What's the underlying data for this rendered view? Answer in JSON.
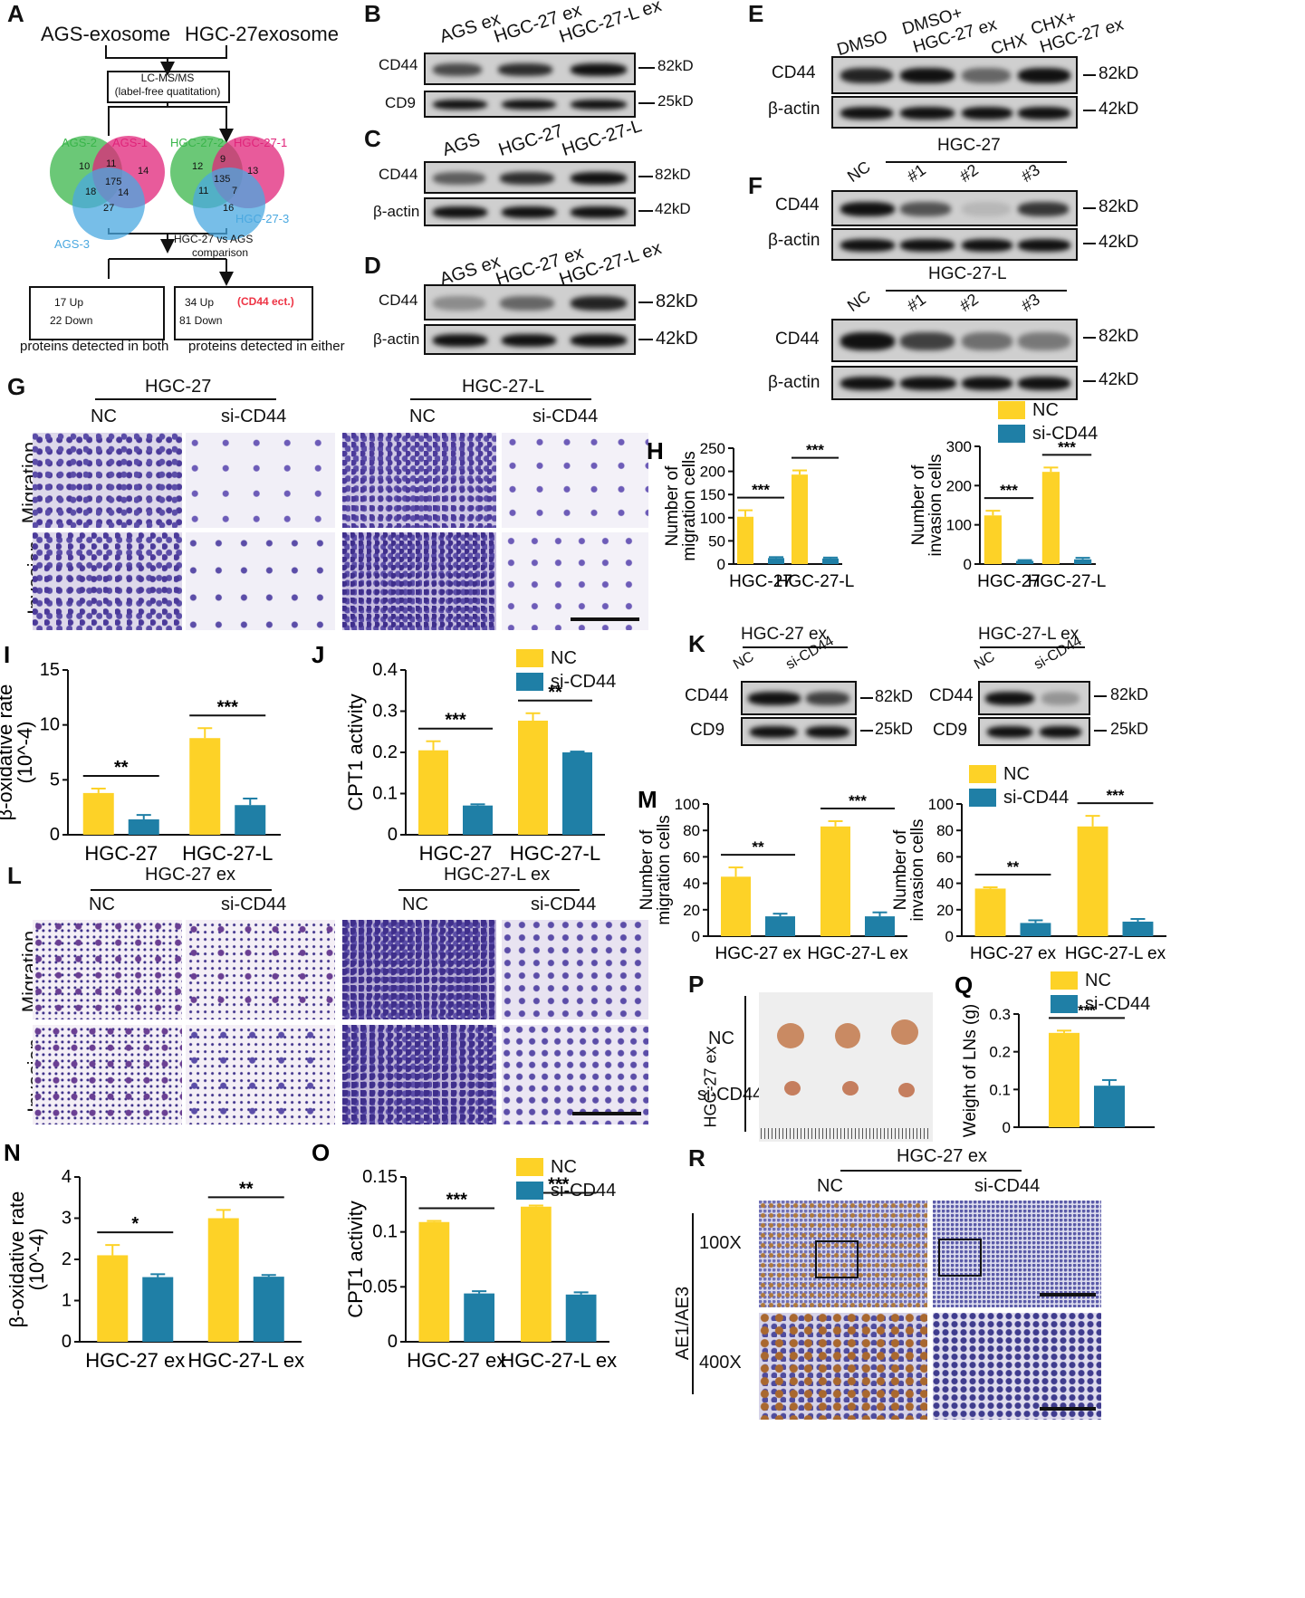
{
  "panels": {
    "A": {
      "label": "A",
      "top_left": "AGS-exosome",
      "top_right": "HGC-27exosome",
      "method_line1": "LC-MS/MS",
      "method_line2": "(label-free quatitation)",
      "ags_sets": [
        "AGS-2",
        "AGS-1",
        "AGS-3"
      ],
      "ags_counts": [
        "10",
        "11",
        "14",
        "175",
        "18",
        "14",
        "27"
      ],
      "hgc_sets": [
        "HGC-27-2",
        "HGC-27-1",
        "HGC-27-3"
      ],
      "hgc_counts": [
        "12",
        "9",
        "13",
        "135",
        "11",
        "7",
        "16"
      ],
      "comparison_line1": "HGC-27 vs AGS",
      "comparison_line2": "comparison",
      "left_up": "17 Up",
      "left_down": "22 Down",
      "right_up": "34 Up",
      "right_note": "(CD44 ect.)",
      "right_down": "81 Down",
      "caption_left": "proteins detected in both",
      "caption_right": "proteins detected in either"
    },
    "B": {
      "label": "B",
      "lanes": [
        "AGS ex",
        "HGC-27 ex",
        "HGC-27-L ex"
      ],
      "rows": [
        {
          "name": "CD44",
          "size": "82kD"
        },
        {
          "name": "CD9",
          "size": "25kD"
        }
      ]
    },
    "C": {
      "label": "C",
      "lanes": [
        "AGS",
        "HGC-27",
        "HGC-27-L"
      ],
      "rows": [
        {
          "name": "CD44",
          "size": "82kD"
        },
        {
          "name": "β-actin",
          "size": "42kD"
        }
      ]
    },
    "D": {
      "label": "D",
      "lanes": [
        "AGS ex",
        "HGC-27 ex",
        "HGC-27-L ex"
      ],
      "rows": [
        {
          "name": "CD44",
          "size": "82kD"
        },
        {
          "name": "β-actin",
          "size": "42kD"
        }
      ]
    },
    "E": {
      "label": "E",
      "lanes": [
        "DMSO",
        "DMSO+",
        "HGC-27 ex",
        "CHX",
        "CHX+",
        "HGC-27 ex"
      ],
      "rows": [
        {
          "name": "CD44",
          "size": "82kD"
        },
        {
          "name": "β-actin",
          "size": "42kD"
        }
      ]
    },
    "F": {
      "label": "F",
      "group1": "HGC-27",
      "group2": "HGC-27-L",
      "lanes": [
        "NC",
        "#1",
        "#2",
        "#3"
      ],
      "rows": [
        {
          "name": "CD44",
          "size": "82kD"
        },
        {
          "name": "β-actin",
          "size": "42kD"
        }
      ]
    },
    "G": {
      "label": "G",
      "group1": "HGC-27",
      "group2": "HGC-27-L",
      "cols": [
        "NC",
        "si-CD44",
        "NC",
        "si-CD44"
      ],
      "rows": [
        "Migration",
        "Invasion"
      ]
    },
    "K": {
      "label": "K",
      "group1": "HGC-27 ex",
      "group2": "HGC-27-L ex",
      "lanes": [
        "NC",
        "si-CD44"
      ],
      "rows": [
        {
          "name": "CD44",
          "size": "82kD"
        },
        {
          "name": "CD9",
          "size": "25kD"
        }
      ]
    },
    "L": {
      "label": "L",
      "group1": "HGC-27 ex",
      "group2": "HGC-27-L ex",
      "cols": [
        "NC",
        "si-CD44",
        "NC",
        "si-CD44"
      ],
      "rows": [
        "Migration",
        "Invasion"
      ]
    },
    "P": {
      "label": "P",
      "group": "HGC-27 ex",
      "rows": [
        "NC",
        "si-CD44"
      ]
    },
    "R": {
      "label": "R",
      "group": "HGC-27 ex",
      "cols": [
        "NC",
        "si-CD44"
      ],
      "stain": "AE1/AE3",
      "mag1": "100X",
      "mag2": "400X"
    }
  },
  "legend": {
    "nc": "NC",
    "si": "si-CD44"
  },
  "colors": {
    "nc": "#FDD227",
    "si": "#1F7FA6"
  },
  "chart_data": [
    {
      "id": "H1",
      "label": "H",
      "type": "bar",
      "categories": [
        "HGC-27",
        "HGC-27-L"
      ],
      "series": [
        {
          "name": "NC",
          "values": [
            102,
            193
          ],
          "errors": [
            14,
            9
          ]
        },
        {
          "name": "si-CD44",
          "values": [
            13,
            12
          ],
          "errors": [
            2,
            2
          ]
        }
      ],
      "ylabel": "Number of migration cells",
      "ylim": [
        0,
        250
      ],
      "yticks": [
        0,
        50,
        100,
        150,
        200,
        250
      ],
      "sig": [
        "***",
        "***"
      ]
    },
    {
      "id": "H2",
      "label": "",
      "type": "bar",
      "categories": [
        "HGC-27",
        "HGC-27-L"
      ],
      "series": [
        {
          "name": "NC",
          "values": [
            124,
            235
          ],
          "errors": [
            12,
            11
          ]
        },
        {
          "name": "si-CD44",
          "values": [
            8,
            12
          ],
          "errors": [
            2,
            4
          ]
        }
      ],
      "ylabel": "Number of invasion cells",
      "ylim": [
        0,
        300
      ],
      "yticks": [
        0,
        100,
        200,
        300
      ],
      "sig": [
        "***",
        "***"
      ]
    },
    {
      "id": "I",
      "label": "I",
      "type": "bar",
      "categories": [
        "HGC-27",
        "HGC-27-L"
      ],
      "series": [
        {
          "name": "NC",
          "values": [
            3.8,
            8.8
          ],
          "errors": [
            0.4,
            0.9
          ]
        },
        {
          "name": "si-CD44",
          "values": [
            1.4,
            2.7
          ],
          "errors": [
            0.4,
            0.6
          ]
        }
      ],
      "ylabel": "β-oxidative rate (10^-4)",
      "ylim": [
        0,
        15
      ],
      "yticks": [
        0,
        5,
        10,
        15
      ],
      "sig": [
        "**",
        "***"
      ]
    },
    {
      "id": "J",
      "label": "J",
      "type": "bar",
      "categories": [
        "HGC-27",
        "HGC-27-L"
      ],
      "series": [
        {
          "name": "NC",
          "values": [
            0.205,
            0.277
          ],
          "errors": [
            0.022,
            0.018
          ]
        },
        {
          "name": "si-CD44",
          "values": [
            0.071,
            0.2
          ],
          "errors": [
            0.003,
            0.002
          ]
        }
      ],
      "ylabel": "CPT1 activity",
      "ylim": [
        0,
        0.4
      ],
      "yticks": [
        0.0,
        0.1,
        0.2,
        0.3,
        0.4
      ],
      "sig": [
        "***",
        "**"
      ]
    },
    {
      "id": "M1",
      "label": "M",
      "type": "bar",
      "categories": [
        "HGC-27 ex",
        "HGC-27-L ex"
      ],
      "series": [
        {
          "name": "NC",
          "values": [
            45,
            83
          ],
          "errors": [
            7,
            4
          ]
        },
        {
          "name": "si-CD44",
          "values": [
            15,
            15
          ],
          "errors": [
            2,
            3
          ]
        }
      ],
      "ylabel": "Number of migration cells",
      "ylim": [
        0,
        100
      ],
      "yticks": [
        0,
        20,
        40,
        60,
        80,
        100
      ],
      "sig": [
        "**",
        "***"
      ]
    },
    {
      "id": "M2",
      "label": "",
      "type": "bar",
      "categories": [
        "HGC-27 ex",
        "HGC-27-L ex"
      ],
      "series": [
        {
          "name": "NC",
          "values": [
            36,
            83
          ],
          "errors": [
            1,
            8
          ]
        },
        {
          "name": "si-CD44",
          "values": [
            10,
            11
          ],
          "errors": [
            2,
            2
          ]
        }
      ],
      "ylabel": "Number of invasion cells",
      "ylim": [
        0,
        100
      ],
      "yticks": [
        0,
        20,
        40,
        60,
        80,
        100
      ],
      "sig": [
        "**",
        "***"
      ]
    },
    {
      "id": "Q",
      "label": "Q",
      "type": "bar",
      "categories": [
        ""
      ],
      "series": [
        {
          "name": "NC",
          "values": [
            0.25
          ],
          "errors": [
            0.006
          ]
        },
        {
          "name": "si-CD44",
          "values": [
            0.11
          ],
          "errors": [
            0.015
          ]
        }
      ],
      "ylabel": "Weight of LNs (g)",
      "ylim": [
        0,
        0.3
      ],
      "yticks": [
        0.0,
        0.1,
        0.2,
        0.3
      ],
      "sig": [
        "***"
      ]
    },
    {
      "id": "N",
      "label": "N",
      "type": "bar",
      "categories": [
        "HGC-27 ex",
        "HGC-27-L ex"
      ],
      "series": [
        {
          "name": "NC",
          "values": [
            2.1,
            3.0
          ],
          "errors": [
            0.25,
            0.2
          ]
        },
        {
          "name": "si-CD44",
          "values": [
            1.57,
            1.58
          ],
          "errors": [
            0.07,
            0.04
          ]
        }
      ],
      "ylabel": "β-oxidative rate (10^-4)",
      "ylim": [
        0,
        4
      ],
      "yticks": [
        0,
        1,
        2,
        3,
        4
      ],
      "sig": [
        "*",
        "**"
      ]
    },
    {
      "id": "O",
      "label": "O",
      "type": "bar",
      "categories": [
        "HGC-27 ex",
        "HGC-27-L ex"
      ],
      "series": [
        {
          "name": "NC",
          "values": [
            0.109,
            0.123
          ],
          "errors": [
            0.001,
            0.001
          ]
        },
        {
          "name": "si-CD44",
          "values": [
            0.044,
            0.043
          ],
          "errors": [
            0.002,
            0.002
          ]
        }
      ],
      "ylabel": "CPT1 activity",
      "ylim": [
        0,
        0.15
      ],
      "yticks": [
        0.0,
        0.05,
        0.1,
        0.15
      ],
      "sig": [
        "***",
        "***"
      ]
    }
  ]
}
